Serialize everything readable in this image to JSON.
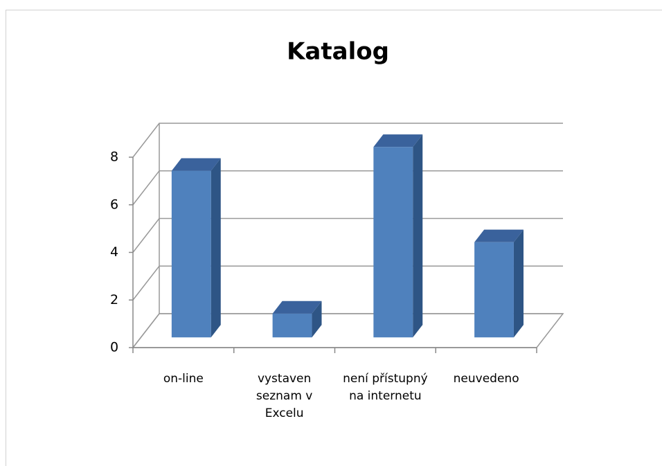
{
  "chart_data": {
    "type": "bar",
    "title": "Katalog",
    "categories": [
      "on-line",
      "vystaven seznam v Excelu",
      "není přístupný na internetu",
      "neuvedeno"
    ],
    "values": [
      7,
      1,
      8,
      4
    ],
    "color": "#4f81bd",
    "ylim": [
      0,
      8
    ],
    "yticks": [
      0,
      2,
      4,
      6,
      8
    ],
    "grid": true
  }
}
